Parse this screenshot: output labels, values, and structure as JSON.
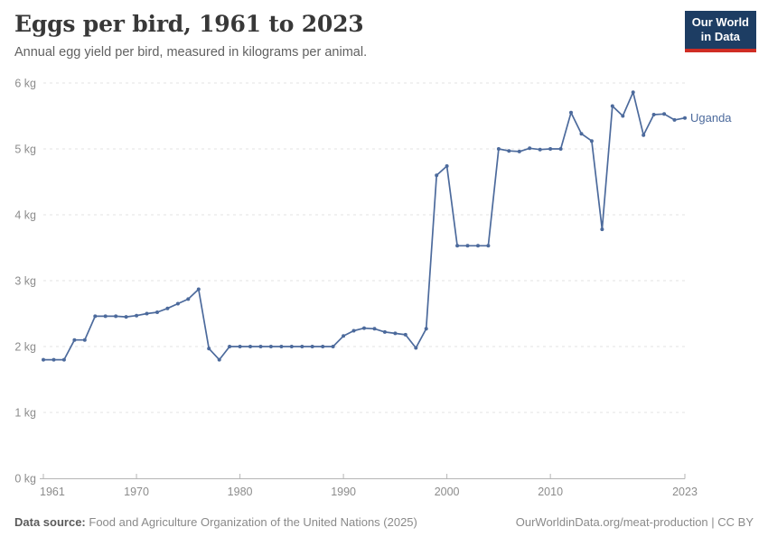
{
  "header": {
    "title": "Eggs per bird, 1961 to 2023",
    "subtitle": "Annual egg yield per bird, measured in kilograms per animal.",
    "logo_line1": "Our World",
    "logo_line2": "in Data"
  },
  "chart_data": {
    "type": "line",
    "title": "Eggs per bird, 1961 to 2023",
    "subtitle": "Annual egg yield per bird, measured in kilograms per animal.",
    "unit": "kg",
    "xlim": [
      1961,
      2023
    ],
    "ylim": [
      0,
      6
    ],
    "x_ticks": [
      1961,
      1970,
      1980,
      1990,
      2000,
      2010,
      2023
    ],
    "y_ticks": [
      0,
      1,
      2,
      3,
      4,
      5,
      6
    ],
    "y_tick_labels": [
      "0 kg",
      "1 kg",
      "2 kg",
      "3 kg",
      "4 kg",
      "5 kg",
      "6 kg"
    ],
    "grid": "horizontal-dashed",
    "legend_position": "end-of-line-label",
    "series": [
      {
        "name": "Uganda",
        "color": "#4C6A9C",
        "x": [
          1961,
          1962,
          1963,
          1964,
          1965,
          1966,
          1967,
          1968,
          1969,
          1970,
          1971,
          1972,
          1973,
          1974,
          1975,
          1976,
          1977,
          1978,
          1979,
          1980,
          1981,
          1982,
          1983,
          1984,
          1985,
          1986,
          1987,
          1988,
          1989,
          1990,
          1991,
          1992,
          1993,
          1994,
          1995,
          1996,
          1997,
          1998,
          1999,
          2000,
          2001,
          2002,
          2003,
          2004,
          2005,
          2006,
          2007,
          2008,
          2009,
          2010,
          2011,
          2012,
          2013,
          2014,
          2015,
          2016,
          2017,
          2018,
          2019,
          2020,
          2021,
          2022,
          2023
        ],
        "values": [
          1.8,
          1.8,
          1.8,
          2.1,
          2.1,
          2.46,
          2.46,
          2.46,
          2.45,
          2.47,
          2.5,
          2.52,
          2.58,
          2.65,
          2.72,
          2.87,
          1.97,
          1.8,
          2.0,
          2.0,
          2.0,
          2.0,
          2.0,
          2.0,
          2.0,
          2.0,
          2.0,
          2.0,
          2.0,
          2.16,
          2.24,
          2.28,
          2.27,
          2.22,
          2.2,
          2.18,
          1.98,
          2.27,
          4.6,
          4.74,
          3.53,
          3.53,
          3.53,
          3.53,
          5.0,
          4.97,
          4.96,
          5.01,
          4.99,
          5.0,
          5.0,
          5.55,
          5.23,
          5.12,
          3.78,
          5.65,
          5.5,
          5.86,
          5.21,
          5.52,
          5.53,
          5.44,
          5.47
        ]
      }
    ]
  },
  "colors": {
    "line": "#4C6A9C",
    "entity_label": "#4C6A9C",
    "gridline": "#e3e3e3",
    "axis": "#b5b5b5",
    "tick_label": "#8c8c8c",
    "title": "#383838",
    "subtitle": "#616161",
    "logo_bg": "#1d3d63",
    "logo_accent": "#cf2d24"
  },
  "footer": {
    "datasource_label": "Data source:",
    "datasource_text": "Food and Agriculture Organization of the United Nations (2025)",
    "credit": "OurWorldinData.org/meat-production | CC BY"
  }
}
